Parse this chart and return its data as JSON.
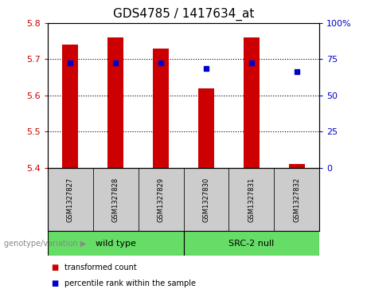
{
  "title": "GDS4785 / 1417634_at",
  "samples": [
    "GSM1327827",
    "GSM1327828",
    "GSM1327829",
    "GSM1327830",
    "GSM1327831",
    "GSM1327832"
  ],
  "bar_values": [
    5.74,
    5.76,
    5.73,
    5.62,
    5.76,
    5.41
  ],
  "bar_base": 5.4,
  "blue_dot_values": [
    5.69,
    5.69,
    5.69,
    5.675,
    5.69,
    5.665
  ],
  "ylim": [
    5.4,
    5.8
  ],
  "y2lim": [
    0,
    100
  ],
  "yticks": [
    5.4,
    5.5,
    5.6,
    5.7,
    5.8
  ],
  "y2ticks": [
    0,
    25,
    50,
    75,
    100
  ],
  "bar_color": "#cc0000",
  "dot_color": "#0000cc",
  "bar_width": 0.35,
  "groups": [
    {
      "label": "wild type",
      "indices": [
        0,
        1,
        2
      ],
      "color": "#66dd66"
    },
    {
      "label": "SRC-2 null",
      "indices": [
        3,
        4,
        5
      ],
      "color": "#66dd66"
    }
  ],
  "group_label": "genotype/variation",
  "legend_items": [
    {
      "label": "transformed count",
      "color": "#cc0000"
    },
    {
      "label": "percentile rank within the sample",
      "color": "#0000cc"
    }
  ],
  "sample_box_color": "#cccccc",
  "title_fontsize": 11,
  "tick_fontsize": 8,
  "label_fontsize": 8
}
